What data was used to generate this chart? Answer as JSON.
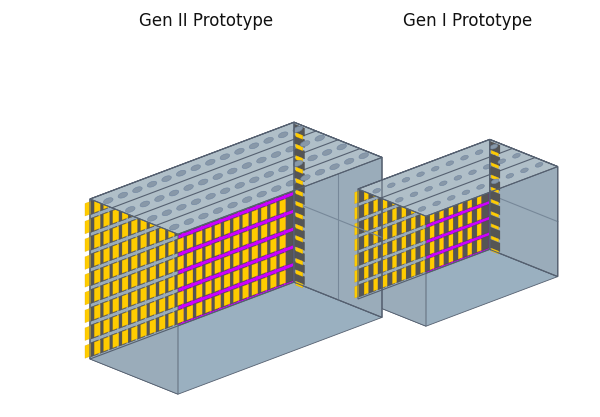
{
  "title_gen2": "Gen II Prototype",
  "title_gen1": "Gen I Prototype",
  "background_color": "#ffffff",
  "font_size": 12,
  "colors": {
    "top_face": "#b0bfc8",
    "top_face_light": "#c8d8e0",
    "side_face_right": "#8a9aaa",
    "front_face": "#9aacba",
    "front_panel": "#a0b0be",
    "purple": "#cc00ff",
    "purple_dark": "#8800aa",
    "yellow": "#ffcc00",
    "yellow_dark": "#cc9900",
    "dark_gray": "#444444",
    "mid_gray": "#555555",
    "slot_color": "#8898a8",
    "slot_border": "#7085a0",
    "edge_color": "#556070",
    "panel_edge": "#778899",
    "bottom_face": "#8090a0",
    "light_blue_bottom": "#9ab0c0"
  }
}
